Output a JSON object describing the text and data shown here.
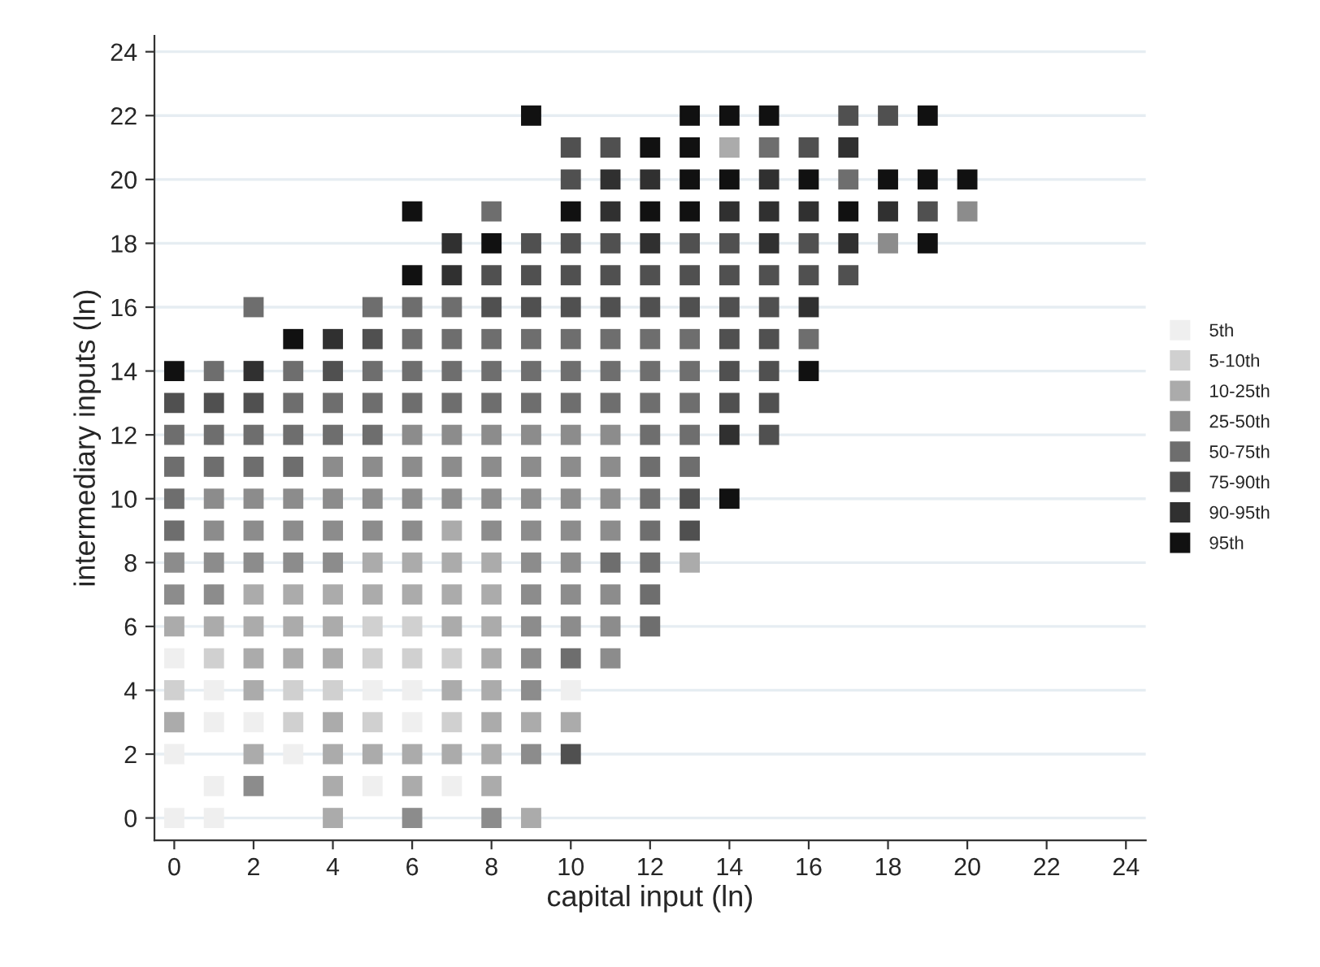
{
  "chart_data": {
    "type": "scatter",
    "xlabel": "capital input (ln)",
    "ylabel": "intermediary inputs (ln)",
    "xlim": [
      -0.5,
      24.5
    ],
    "ylim": [
      -0.7,
      24.5
    ],
    "xticks": [
      0,
      2,
      4,
      6,
      8,
      10,
      12,
      14,
      16,
      18,
      20,
      22,
      24
    ],
    "yticks": [
      0,
      2,
      4,
      6,
      8,
      10,
      12,
      14,
      16,
      18,
      20,
      22,
      24
    ],
    "grid": "y",
    "legend": "right",
    "marker": "square",
    "series": [
      {
        "name": "5th",
        "color": "#efefef",
        "x": [
          0,
          1,
          5,
          6,
          10,
          1,
          2,
          6,
          0,
          3,
          1,
          5,
          7,
          0,
          1
        ],
        "values": [
          5,
          4,
          4,
          4,
          4,
          3,
          3,
          3,
          2,
          2,
          1,
          1,
          1,
          0,
          0
        ]
      },
      {
        "name": "5-10th",
        "color": "#d0d0d0",
        "x": [
          5,
          6,
          1,
          5,
          6,
          7,
          0,
          3,
          4,
          3,
          5,
          7
        ],
        "values": [
          6,
          6,
          5,
          5,
          5,
          5,
          4,
          4,
          4,
          3,
          3,
          3
        ]
      },
      {
        "name": "10-25th",
        "color": "#ababab",
        "x": [
          14,
          7,
          5,
          6,
          7,
          8,
          13,
          2,
          3,
          4,
          5,
          6,
          7,
          8,
          0,
          1,
          2,
          3,
          4,
          7,
          8,
          2,
          3,
          4,
          8,
          2,
          7,
          8,
          0,
          4,
          8,
          9,
          10,
          2,
          4,
          5,
          6,
          7,
          8,
          4,
          6,
          8,
          4,
          9
        ],
        "values": [
          21,
          9,
          8,
          8,
          8,
          8,
          8,
          7,
          7,
          7,
          7,
          7,
          7,
          7,
          6,
          6,
          6,
          6,
          6,
          6,
          6,
          5,
          5,
          5,
          5,
          4,
          4,
          4,
          3,
          3,
          3,
          3,
          3,
          2,
          2,
          2,
          2,
          2,
          2,
          1,
          1,
          1,
          0,
          0
        ]
      },
      {
        "name": "25-50th",
        "color": "#8c8c8c",
        "x": [
          20,
          18,
          6,
          7,
          8,
          9,
          10,
          11,
          4,
          5,
          6,
          7,
          8,
          9,
          10,
          11,
          1,
          2,
          3,
          4,
          5,
          6,
          7,
          8,
          9,
          10,
          11,
          1,
          2,
          3,
          4,
          5,
          6,
          8,
          9,
          10,
          11,
          0,
          1,
          2,
          3,
          4,
          9,
          10,
          0,
          1,
          9,
          10,
          11,
          9,
          10,
          11,
          9,
          11,
          9,
          9,
          2,
          6,
          8
        ],
        "values": [
          19,
          18,
          12,
          12,
          12,
          12,
          12,
          12,
          11,
          11,
          11,
          11,
          11,
          11,
          11,
          11,
          10,
          10,
          10,
          10,
          10,
          10,
          10,
          10,
          10,
          10,
          10,
          9,
          9,
          9,
          9,
          9,
          9,
          9,
          9,
          9,
          9,
          8,
          8,
          8,
          8,
          8,
          8,
          8,
          7,
          7,
          7,
          7,
          7,
          6,
          6,
          6,
          5,
          5,
          4,
          2,
          1,
          0,
          0
        ]
      },
      {
        "name": "50-75th",
        "color": "#6e6e6e",
        "x": [
          15,
          17,
          8,
          2,
          5,
          6,
          7,
          6,
          7,
          8,
          9,
          10,
          11,
          12,
          13,
          16,
          1,
          3,
          5,
          6,
          7,
          8,
          9,
          10,
          11,
          12,
          13,
          3,
          4,
          5,
          6,
          7,
          8,
          9,
          10,
          11,
          12,
          13,
          0,
          1,
          2,
          3,
          4,
          5,
          12,
          13,
          0,
          1,
          2,
          3,
          12,
          13,
          0,
          12,
          0,
          12,
          11,
          12,
          12,
          12,
          10
        ],
        "values": [
          21,
          20,
          19,
          16,
          16,
          16,
          16,
          15,
          15,
          15,
          15,
          15,
          15,
          15,
          15,
          15,
          14,
          14,
          14,
          14,
          14,
          14,
          14,
          14,
          14,
          14,
          14,
          13,
          13,
          13,
          13,
          13,
          13,
          13,
          13,
          13,
          13,
          13,
          12,
          12,
          12,
          12,
          12,
          12,
          12,
          12,
          11,
          11,
          11,
          11,
          11,
          11,
          10,
          10,
          9,
          9,
          8,
          8,
          7,
          6,
          5
        ]
      },
      {
        "name": "75-90th",
        "color": "#505050",
        "x": [
          17,
          18,
          10,
          11,
          16,
          10,
          19,
          9,
          10,
          11,
          13,
          14,
          16,
          8,
          9,
          10,
          11,
          12,
          13,
          14,
          15,
          16,
          17,
          8,
          9,
          10,
          11,
          12,
          13,
          14,
          15,
          5,
          14,
          15,
          4,
          14,
          15,
          0,
          1,
          2,
          14,
          15,
          15,
          13,
          13,
          10
        ],
        "values": [
          22,
          22,
          21,
          21,
          21,
          20,
          19,
          18,
          18,
          18,
          18,
          18,
          18,
          17,
          17,
          17,
          17,
          17,
          17,
          17,
          17,
          17,
          17,
          16,
          16,
          16,
          16,
          16,
          16,
          16,
          16,
          15,
          15,
          15,
          14,
          14,
          14,
          13,
          13,
          13,
          13,
          13,
          12,
          10,
          9,
          2
        ]
      },
      {
        "name": "90-95th",
        "color": "#303030",
        "x": [
          17,
          11,
          12,
          15,
          11,
          14,
          15,
          16,
          18,
          7,
          12,
          15,
          17,
          7,
          16,
          4,
          2,
          14
        ],
        "values": [
          21,
          20,
          20,
          20,
          19,
          19,
          19,
          19,
          19,
          18,
          18,
          18,
          18,
          17,
          16,
          15,
          14,
          12
        ]
      },
      {
        "name": "95th",
        "color": "#111111",
        "x": [
          9,
          13,
          14,
          15,
          19,
          12,
          13,
          13,
          14,
          16,
          18,
          19,
          20,
          6,
          10,
          12,
          13,
          17,
          8,
          19,
          6,
          3,
          0,
          16,
          14
        ],
        "values": [
          22,
          22,
          22,
          22,
          22,
          21,
          21,
          20,
          20,
          20,
          20,
          20,
          20,
          19,
          19,
          19,
          19,
          19,
          18,
          18,
          17,
          15,
          14,
          14,
          10
        ]
      }
    ]
  }
}
